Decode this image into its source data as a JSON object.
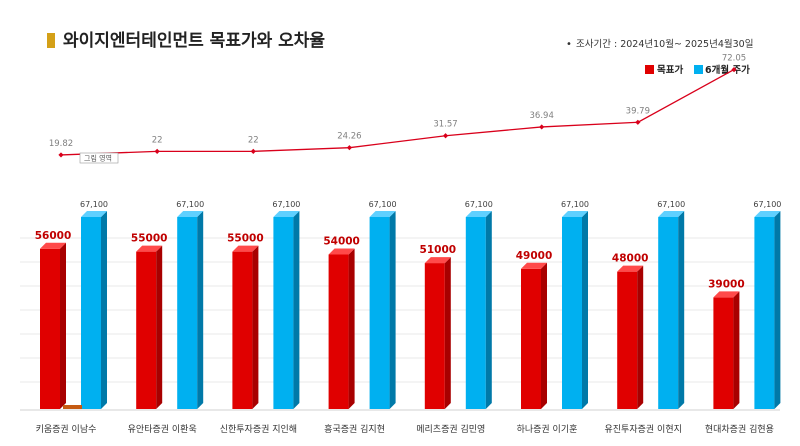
{
  "header": {
    "title": "와이지엔터테인먼트 목표가와 오차율",
    "period": "조사기간 : 2024년10월~ 2025년4월30일",
    "accent_color": "#D4A017"
  },
  "tooltip": {
    "label": "그림 영역"
  },
  "colors": {
    "target": "#E00000",
    "target_side": "#A80000",
    "target_top": "#FF4A4A",
    "price": "#00B0F0",
    "price_side": "#0079A8",
    "price_top": "#5FD0FF",
    "line": "#D9001B",
    "error_label": "#808080",
    "target_label": "#C00000",
    "price_label": "#404040",
    "gridline": "#EAEAEA",
    "small_marker": "#C55A11"
  },
  "chart_data": {
    "type": "bar",
    "categories": [
      "키움증권 이남수",
      "유안타증권 이환욱",
      "신한투자증권 지인해",
      "흥국증권 김지현",
      "메리츠증권 김민영",
      "하나증권 이기훈",
      "유진투자증권 이현지",
      "현대차증권 김현용"
    ],
    "series": [
      {
        "name": "목표가",
        "values": [
          56000,
          55000,
          55000,
          54000,
          51000,
          49000,
          48000,
          39000
        ],
        "labels": [
          "56000",
          "55000",
          "55000",
          "54000",
          "51000",
          "49000",
          "48000",
          "39000"
        ]
      },
      {
        "name": "6개월 주가",
        "values": [
          67100,
          67100,
          67100,
          67100,
          67100,
          67100,
          67100,
          67100
        ],
        "labels": [
          "67,100",
          "67,100",
          "67,100",
          "67,100",
          "67,100",
          "67,100",
          "67,100",
          "67,100"
        ]
      },
      {
        "name": "",
        "type": "line",
        "values": [
          19.82,
          22,
          22,
          24.26,
          31.57,
          36.94,
          39.79,
          72.05
        ],
        "labels": [
          "19.82",
          "22",
          "22",
          "24.26",
          "31.57",
          "36.94",
          "39.79",
          "72.05"
        ]
      }
    ],
    "legend_position": "top-right",
    "grid": true
  }
}
